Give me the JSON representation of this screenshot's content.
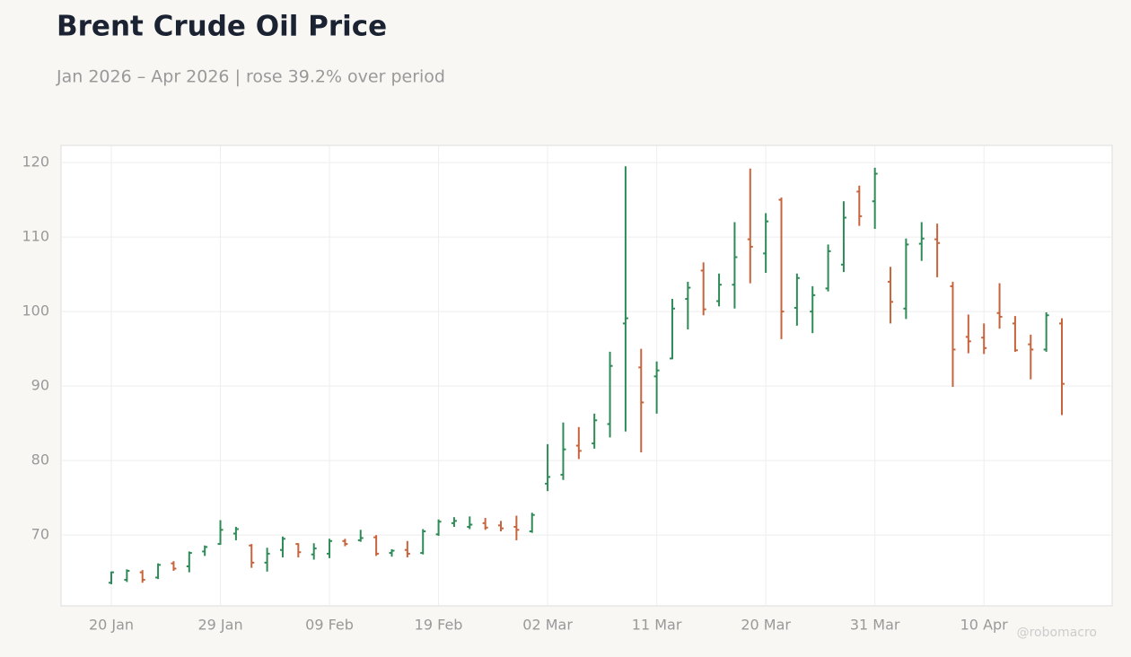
{
  "chart_data": {
    "type": "ohlc",
    "title": "Brent Crude Oil Price",
    "subtitle": "Jan 2026 – Apr 2026 | rose 39.2% over period",
    "watermark": "@robomacro",
    "categories": [
      "20 Jan",
      null,
      null,
      null,
      null,
      null,
      null,
      "29 Jan",
      null,
      null,
      null,
      null,
      null,
      null,
      "09 Feb",
      null,
      null,
      null,
      null,
      null,
      null,
      "19 Feb",
      null,
      null,
      null,
      null,
      null,
      null,
      "02 Mar",
      null,
      null,
      null,
      null,
      null,
      null,
      "11 Mar",
      null,
      null,
      null,
      null,
      null,
      null,
      "20 Mar",
      null,
      null,
      null,
      null,
      null,
      null,
      "31 Mar",
      null,
      null,
      null,
      null,
      null,
      null,
      "10 Apr",
      null,
      null,
      null,
      null,
      null
    ],
    "open": [
      63.6,
      64.0,
      65.0,
      64.3,
      66.2,
      65.8,
      67.8,
      68.8,
      70.2,
      68.6,
      66.3,
      68.0,
      68.8,
      67.4,
      67.5,
      69.2,
      69.3,
      69.7,
      67.6,
      68.0,
      67.6,
      70.1,
      71.6,
      71.1,
      71.6,
      71.3,
      71.1,
      70.5,
      76.9,
      78.1,
      82.0,
      82.3,
      84.9,
      98.4,
      92.5,
      91.3,
      93.7,
      101.7,
      105.5,
      101.4,
      103.6,
      109.7,
      107.8,
      115.0,
      100.5,
      100.0,
      103.1,
      106.3,
      116.1,
      114.8,
      104.0,
      100.4,
      109.1,
      109.7,
      103.4,
      96.6,
      96.5,
      99.8,
      98.4,
      95.6,
      94.9,
      98.4
    ],
    "high": [
      65.1,
      65.4,
      65.3,
      66.2,
      66.5,
      67.8,
      68.6,
      72.0,
      71.1,
      68.8,
      68.3,
      69.8,
      68.9,
      68.9,
      69.5,
      69.5,
      70.7,
      70.0,
      68.1,
      69.2,
      70.8,
      72.1,
      72.4,
      72.5,
      72.3,
      71.9,
      72.6,
      73.0,
      82.2,
      85.1,
      84.5,
      86.3,
      94.6,
      119.5,
      95.0,
      93.3,
      101.7,
      104.0,
      106.6,
      105.1,
      112.0,
      119.2,
      113.2,
      115.3,
      105.1,
      103.4,
      109.0,
      114.8,
      116.9,
      119.3,
      106.0,
      109.8,
      112.0,
      111.8,
      104.0,
      99.6,
      98.4,
      103.8,
      99.4,
      96.9,
      99.9,
      99.1
    ],
    "low": [
      63.4,
      63.7,
      63.6,
      64.1,
      65.2,
      65.0,
      67.2,
      68.7,
      69.3,
      65.6,
      65.1,
      67.0,
      67.0,
      66.7,
      66.9,
      68.5,
      69.1,
      67.2,
      67.1,
      67.0,
      67.4,
      69.9,
      71.1,
      70.8,
      70.7,
      70.5,
      69.3,
      70.3,
      75.9,
      77.4,
      80.2,
      81.6,
      83.1,
      83.9,
      81.1,
      86.3,
      93.6,
      97.6,
      99.5,
      100.7,
      100.4,
      103.8,
      105.2,
      96.3,
      98.1,
      97.1,
      102.7,
      105.3,
      111.5,
      111.1,
      98.4,
      99.0,
      106.8,
      104.6,
      89.9,
      94.4,
      94.3,
      97.7,
      94.6,
      90.9,
      94.6,
      86.1
    ],
    "close": [
      65.0,
      65.2,
      64.0,
      66.0,
      65.5,
      67.6,
      68.4,
      70.7,
      70.8,
      66.3,
      67.5,
      69.5,
      67.7,
      68.2,
      69.2,
      68.8,
      69.6,
      67.5,
      67.9,
      67.5,
      70.5,
      71.8,
      71.9,
      71.4,
      71.0,
      70.9,
      70.7,
      72.7,
      77.8,
      81.5,
      81.3,
      85.4,
      92.7,
      99.1,
      87.8,
      92.1,
      100.4,
      103.2,
      100.3,
      103.6,
      107.3,
      108.7,
      112.1,
      100.0,
      104.5,
      102.2,
      108.1,
      112.6,
      112.8,
      118.5,
      101.3,
      109.0,
      109.8,
      109.2,
      94.9,
      96.0,
      95.1,
      99.3,
      94.8,
      94.9,
      99.5,
      90.3
    ],
    "up_color": "#2e8b57",
    "down_color": "#c8643c",
    "ylim": [
      60.5,
      122.3
    ],
    "yticks": [
      70,
      80,
      90,
      100,
      110,
      120
    ],
    "grid": true
  }
}
